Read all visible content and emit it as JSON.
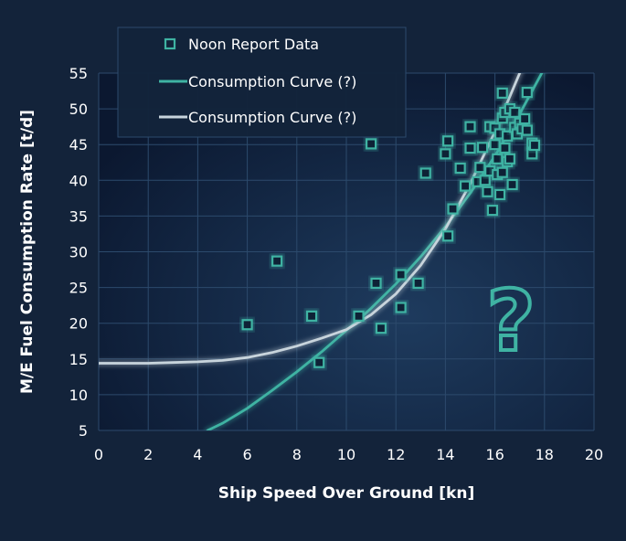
{
  "chart_data": {
    "type": "scatter",
    "title": "",
    "xlabel": "Ship Speed Over Ground [kn]",
    "ylabel": "M/E Fuel Consumption Rate [t/d]",
    "xlim": [
      0,
      20
    ],
    "ylim": [
      5,
      55
    ],
    "x_ticks": [
      0,
      2,
      4,
      6,
      8,
      10,
      12,
      14,
      16,
      18,
      20
    ],
    "y_ticks": [
      5,
      10,
      15,
      20,
      25,
      30,
      35,
      40,
      45,
      50,
      55
    ],
    "grid": true,
    "legend_position": "top-left",
    "annotation": "?",
    "colors": {
      "background": "#13233a",
      "plot_center": "#1e3b5e",
      "plot_edge": "#0b1830",
      "points": "#3fb3a3",
      "curve_1": "#3fb3a3",
      "curve_2": "#c8d4dc",
      "axis_text": "#ffffff",
      "grid": "#2c4a6c"
    },
    "series": [
      {
        "name": "Noon Report Data",
        "kind": "scatter",
        "points": [
          [
            6.0,
            19.8
          ],
          [
            7.2,
            28.7
          ],
          [
            8.6,
            21.0
          ],
          [
            8.9,
            14.5
          ],
          [
            10.5,
            21.0
          ],
          [
            11.0,
            45.1
          ],
          [
            11.2,
            25.6
          ],
          [
            11.4,
            19.3
          ],
          [
            12.2,
            26.8
          ],
          [
            12.2,
            22.2
          ],
          [
            12.9,
            25.6
          ],
          [
            13.2,
            41.0
          ],
          [
            14.1,
            32.2
          ],
          [
            14.1,
            45.5
          ],
          [
            14.3,
            36.0
          ],
          [
            14.0,
            43.7
          ],
          [
            14.6,
            41.7
          ],
          [
            14.8,
            39.2
          ],
          [
            15.0,
            44.5
          ],
          [
            15.0,
            47.5
          ],
          [
            15.3,
            39.8
          ],
          [
            15.4,
            41.8
          ],
          [
            15.5,
            44.6
          ],
          [
            15.6,
            40.0
          ],
          [
            15.7,
            38.4
          ],
          [
            15.8,
            41.3
          ],
          [
            15.8,
            47.5
          ],
          [
            15.9,
            35.8
          ],
          [
            16.0,
            45.0
          ],
          [
            16.0,
            47.3
          ],
          [
            16.1,
            43.0
          ],
          [
            16.1,
            40.8
          ],
          [
            16.2,
            38.0
          ],
          [
            16.2,
            46.5
          ],
          [
            16.3,
            52.2
          ],
          [
            16.3,
            48.7
          ],
          [
            16.4,
            49.5
          ],
          [
            16.4,
            44.5
          ],
          [
            16.5,
            46.2
          ],
          [
            16.5,
            42.6
          ],
          [
            16.6,
            50.0
          ],
          [
            16.6,
            43.0
          ],
          [
            16.7,
            39.4
          ],
          [
            16.8,
            47.4
          ],
          [
            16.8,
            49.5
          ],
          [
            16.9,
            46.5
          ],
          [
            17.0,
            48.0
          ],
          [
            17.1,
            47.2
          ],
          [
            17.2,
            48.6
          ],
          [
            17.3,
            47.0
          ],
          [
            17.3,
            52.3
          ],
          [
            17.5,
            45.2
          ],
          [
            17.5,
            43.7
          ],
          [
            17.6,
            44.9
          ],
          [
            16.3,
            41.1
          ]
        ]
      },
      {
        "name": "Consumption Curve (?)",
        "kind": "line",
        "x": [
          4.4,
          5,
          6,
          7,
          8,
          9,
          10,
          11,
          12,
          13,
          14,
          15,
          16,
          17,
          18,
          18.5
        ],
        "y": [
          5.0,
          6.0,
          8.1,
          10.6,
          13.2,
          16.0,
          19.0,
          22.1,
          25.5,
          29.3,
          33.5,
          38.2,
          43.4,
          49.3,
          55.7,
          59.0
        ]
      },
      {
        "name": "Consumption Curve (?)",
        "kind": "line",
        "x": [
          0,
          1,
          2,
          3,
          4,
          5,
          6,
          7,
          8,
          9,
          10,
          11,
          12,
          13,
          14,
          15,
          16,
          17,
          18
        ],
        "y": [
          14.4,
          14.4,
          14.4,
          14.5,
          14.6,
          14.8,
          15.2,
          15.9,
          16.8,
          17.9,
          19.1,
          21.2,
          24.1,
          28.1,
          33.2,
          39.5,
          46.8,
          55.0,
          64.0
        ]
      }
    ]
  }
}
